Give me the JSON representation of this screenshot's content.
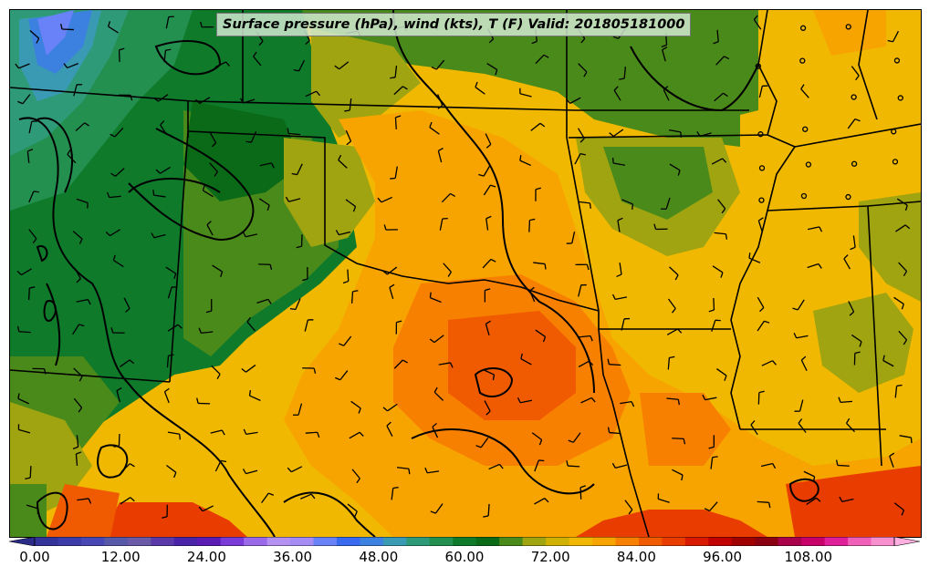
{
  "title": "Surface pressure (hPa), wind (kts), T (F) Valid: 201805181000",
  "colorbar": {
    "tick_labels": [
      "0.00",
      "12.00",
      "24.00",
      "36.00",
      "48.00",
      "60.00",
      "72.00",
      "84.00",
      "96.00",
      "108.00"
    ],
    "min": 0,
    "max": 120,
    "step": 3,
    "extend": "both",
    "colors": [
      "#33339a",
      "#3c3ca8",
      "#4848b4",
      "#5858a8",
      "#6a5aa8",
      "#5a3aa8",
      "#4a22a8",
      "#5a1ab4",
      "#7a3ad8",
      "#9a6ae8",
      "#b490f0",
      "#a48cf4",
      "#6a82f8",
      "#3a6af0",
      "#3c80e0",
      "#3a9ab4",
      "#2f9a78",
      "#249050",
      "#0e7a2a",
      "#0a6a18",
      "#4a8a1a",
      "#a0a410",
      "#d0b000",
      "#f0b800",
      "#f8a400",
      "#f88000",
      "#f05a00",
      "#e83c00",
      "#d81a00",
      "#c00000",
      "#a00000",
      "#8a0010",
      "#a8004a",
      "#c8006a",
      "#e0209a",
      "#f060b8",
      "#f890d0"
    ],
    "under_color": "#2a2a88",
    "over_color": "#ffb0e0"
  },
  "map": {
    "background_color": "#f0b800",
    "pressure_contour_color": "#000000",
    "wind_barb_color": "#000000",
    "state_line_color": "#000000"
  }
}
